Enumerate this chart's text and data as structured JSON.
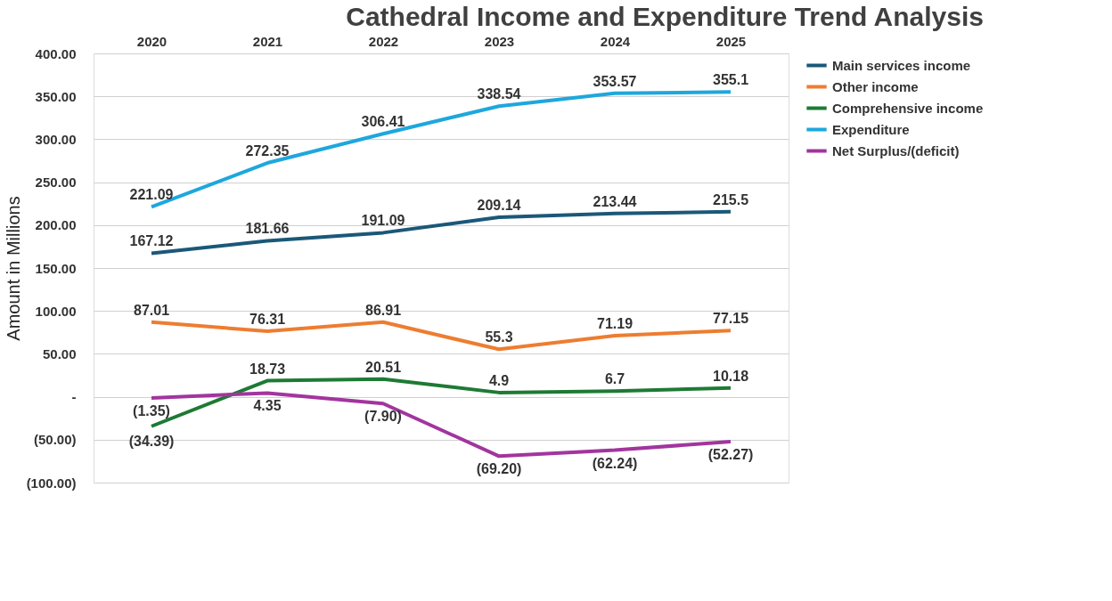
{
  "chart_data": {
    "type": "line",
    "title": "Cathedral Income and Expenditure Trend Analysis",
    "ylabel": "Amount in Millions",
    "categories": [
      "2020",
      "2021",
      "2022",
      "2023",
      "2024",
      "2025"
    ],
    "series": [
      {
        "name": "Main services income",
        "color": "#1b5878",
        "values": [
          167.12,
          181.66,
          191.09,
          209.14,
          213.44,
          215.5
        ],
        "value_labels": [
          "167.12",
          "181.66",
          "191.09",
          "209.14",
          "213.44",
          "215.5"
        ]
      },
      {
        "name": "Other income",
        "color": "#ed7d31",
        "values": [
          87.01,
          76.31,
          86.91,
          55.3,
          71.19,
          77.15
        ],
        "value_labels": [
          "87.01",
          "76.31",
          "86.91",
          "55.3",
          "71.19",
          "77.15"
        ]
      },
      {
        "name": "Comprehensive income",
        "color": "#1e7a34",
        "values": [
          -34.39,
          18.73,
          20.51,
          4.9,
          6.7,
          10.18
        ],
        "value_labels": [
          "(34.39)",
          "18.73",
          "20.51",
          "4.9",
          "6.7",
          "10.18"
        ]
      },
      {
        "name": "Expenditure",
        "color": "#1ea7dd",
        "values": [
          221.09,
          272.35,
          306.41,
          338.54,
          353.57,
          355.1
        ],
        "value_labels": [
          "221.09",
          "272.35",
          "306.41",
          "338.54",
          "353.57",
          "355.1"
        ]
      },
      {
        "name": "Net Surplus/(deficit)",
        "color": "#a2359e",
        "values": [
          -1.35,
          4.35,
          -7.9,
          -69.2,
          -62.24,
          -52.27
        ],
        "value_labels": [
          "(1.35)",
          "4.35",
          "(7.90)",
          "(69.20)",
          "(62.24)",
          "(52.27)"
        ]
      }
    ],
    "ylim": [
      -100,
      400
    ],
    "yticks": [
      {
        "value": 400,
        "label": "400.00"
      },
      {
        "value": 350,
        "label": "350.00"
      },
      {
        "value": 300,
        "label": "300.00"
      },
      {
        "value": 250,
        "label": "250.00"
      },
      {
        "value": 200,
        "label": "200.00"
      },
      {
        "value": 150,
        "label": "150.00"
      },
      {
        "value": 100,
        "label": "100.00"
      },
      {
        "value": 50,
        "label": "50.00"
      },
      {
        "value": 0,
        "label": "-"
      },
      {
        "value": -50,
        "label": "(50.00)"
      },
      {
        "value": -100,
        "label": "(100.00)"
      }
    ],
    "grid": "y",
    "legend": "right",
    "marker": "none",
    "line_style": "solid"
  }
}
